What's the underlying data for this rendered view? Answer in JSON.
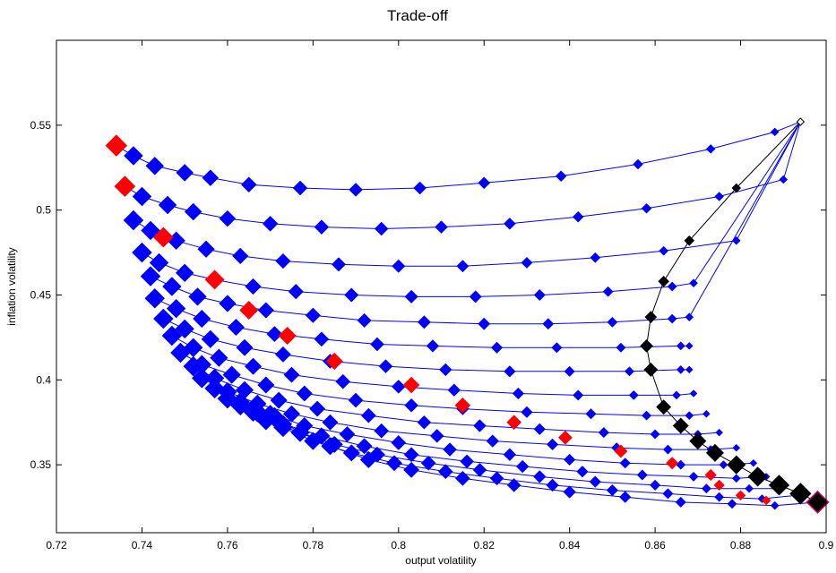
{
  "chart_data": {
    "type": "scatter",
    "title": "Trade-off",
    "xlabel": "output volatility",
    "ylabel": "inflation volatility",
    "xlim": [
      0.72,
      0.9
    ],
    "ylim": [
      0.31,
      0.6
    ],
    "xticks": [
      "0.72",
      "0.74",
      "0.76",
      "0.78",
      "0.8",
      "0.82",
      "0.84",
      "0.86",
      "0.88",
      "0.9"
    ],
    "yticks": [
      "0.35",
      "0.4",
      "0.45",
      "0.5",
      "0.55"
    ],
    "grid": false,
    "colors": {
      "line": "#0000ff",
      "marker": "#0000ff",
      "highlight": "#ff0000",
      "frontier": "#000000",
      "endpoint_edge": "#cc0066"
    },
    "series": [
      {
        "points": [
          [
            0.734,
            0.538
          ],
          [
            0.738,
            0.532
          ],
          [
            0.743,
            0.526
          ],
          [
            0.75,
            0.522
          ],
          [
            0.756,
            0.519
          ],
          [
            0.765,
            0.515
          ],
          [
            0.777,
            0.513
          ],
          [
            0.79,
            0.512
          ],
          [
            0.805,
            0.513
          ],
          [
            0.82,
            0.516
          ],
          [
            0.838,
            0.52
          ],
          [
            0.856,
            0.527
          ],
          [
            0.873,
            0.536
          ],
          [
            0.888,
            0.546
          ],
          [
            0.894,
            0.552
          ]
        ]
      },
      {
        "points": [
          [
            0.736,
            0.514
          ],
          [
            0.74,
            0.508
          ],
          [
            0.746,
            0.503
          ],
          [
            0.752,
            0.499
          ],
          [
            0.76,
            0.495
          ],
          [
            0.77,
            0.492
          ],
          [
            0.782,
            0.49
          ],
          [
            0.796,
            0.489
          ],
          [
            0.81,
            0.49
          ],
          [
            0.826,
            0.492
          ],
          [
            0.842,
            0.496
          ],
          [
            0.858,
            0.501
          ],
          [
            0.875,
            0.508
          ],
          [
            0.89,
            0.518
          ],
          [
            0.894,
            0.552
          ]
        ]
      },
      {
        "points": [
          [
            0.738,
            0.494
          ],
          [
            0.742,
            0.488
          ],
          [
            0.748,
            0.482
          ],
          [
            0.755,
            0.477
          ],
          [
            0.763,
            0.473
          ],
          [
            0.773,
            0.47
          ],
          [
            0.786,
            0.468
          ],
          [
            0.8,
            0.467
          ],
          [
            0.815,
            0.467
          ],
          [
            0.83,
            0.469
          ],
          [
            0.846,
            0.472
          ],
          [
            0.862,
            0.476
          ],
          [
            0.879,
            0.482
          ],
          [
            0.894,
            0.552
          ]
        ]
      },
      {
        "points": [
          [
            0.74,
            0.475
          ],
          [
            0.744,
            0.469
          ],
          [
            0.75,
            0.463
          ],
          [
            0.757,
            0.459
          ],
          [
            0.766,
            0.455
          ],
          [
            0.776,
            0.452
          ],
          [
            0.789,
            0.45
          ],
          [
            0.803,
            0.449
          ],
          [
            0.818,
            0.449
          ],
          [
            0.833,
            0.45
          ],
          [
            0.849,
            0.452
          ],
          [
            0.864,
            0.455
          ],
          [
            0.869,
            0.457
          ],
          [
            0.894,
            0.552
          ]
        ]
      },
      {
        "points": [
          [
            0.742,
            0.461
          ],
          [
            0.747,
            0.455
          ],
          [
            0.753,
            0.449
          ],
          [
            0.76,
            0.445
          ],
          [
            0.769,
            0.441
          ],
          [
            0.78,
            0.438
          ],
          [
            0.792,
            0.435
          ],
          [
            0.806,
            0.434
          ],
          [
            0.82,
            0.433
          ],
          [
            0.835,
            0.433
          ],
          [
            0.85,
            0.434
          ],
          [
            0.864,
            0.436
          ],
          [
            0.868,
            0.437
          ],
          [
            0.894,
            0.552
          ]
        ]
      },
      {
        "points": [
          [
            0.743,
            0.448
          ],
          [
            0.748,
            0.442
          ],
          [
            0.754,
            0.436
          ],
          [
            0.762,
            0.431
          ],
          [
            0.771,
            0.427
          ],
          [
            0.782,
            0.424
          ],
          [
            0.795,
            0.421
          ],
          [
            0.808,
            0.42
          ],
          [
            0.823,
            0.419
          ],
          [
            0.837,
            0.419
          ],
          [
            0.852,
            0.419
          ],
          [
            0.866,
            0.42
          ],
          [
            0.868,
            0.42
          ]
        ]
      },
      {
        "points": [
          [
            0.745,
            0.436
          ],
          [
            0.75,
            0.43
          ],
          [
            0.756,
            0.424
          ],
          [
            0.764,
            0.419
          ],
          [
            0.773,
            0.415
          ],
          [
            0.784,
            0.411
          ],
          [
            0.797,
            0.408
          ],
          [
            0.811,
            0.406
          ],
          [
            0.826,
            0.405
          ],
          [
            0.84,
            0.405
          ],
          [
            0.854,
            0.405
          ],
          [
            0.866,
            0.406
          ],
          [
            0.868,
            0.406
          ]
        ]
      },
      {
        "points": [
          [
            0.747,
            0.426
          ],
          [
            0.752,
            0.419
          ],
          [
            0.758,
            0.413
          ],
          [
            0.766,
            0.408
          ],
          [
            0.775,
            0.403
          ],
          [
            0.787,
            0.399
          ],
          [
            0.8,
            0.396
          ],
          [
            0.813,
            0.394
          ],
          [
            0.828,
            0.392
          ],
          [
            0.842,
            0.391
          ],
          [
            0.855,
            0.391
          ],
          [
            0.865,
            0.391
          ],
          [
            0.869,
            0.392
          ]
        ]
      },
      {
        "points": [
          [
            0.749,
            0.416
          ],
          [
            0.754,
            0.409
          ],
          [
            0.761,
            0.403
          ],
          [
            0.769,
            0.397
          ],
          [
            0.778,
            0.392
          ],
          [
            0.79,
            0.388
          ],
          [
            0.803,
            0.385
          ],
          [
            0.815,
            0.383
          ],
          [
            0.83,
            0.381
          ],
          [
            0.845,
            0.38
          ],
          [
            0.858,
            0.379
          ],
          [
            0.868,
            0.379
          ],
          [
            0.872,
            0.38
          ]
        ]
      },
      {
        "points": [
          [
            0.752,
            0.408
          ],
          [
            0.757,
            0.401
          ],
          [
            0.764,
            0.394
          ],
          [
            0.772,
            0.388
          ],
          [
            0.781,
            0.383
          ],
          [
            0.793,
            0.379
          ],
          [
            0.806,
            0.375
          ],
          [
            0.819,
            0.373
          ],
          [
            0.833,
            0.371
          ],
          [
            0.848,
            0.369
          ],
          [
            0.86,
            0.368
          ],
          [
            0.87,
            0.368
          ],
          [
            0.875,
            0.369
          ]
        ]
      },
      {
        "points": [
          [
            0.754,
            0.401
          ],
          [
            0.76,
            0.393
          ],
          [
            0.767,
            0.386
          ],
          [
            0.775,
            0.38
          ],
          [
            0.784,
            0.375
          ],
          [
            0.796,
            0.37
          ],
          [
            0.809,
            0.367
          ],
          [
            0.822,
            0.364
          ],
          [
            0.836,
            0.362
          ],
          [
            0.851,
            0.36
          ],
          [
            0.863,
            0.359
          ],
          [
            0.873,
            0.359
          ],
          [
            0.879,
            0.36
          ]
        ]
      },
      {
        "points": [
          [
            0.757,
            0.395
          ],
          [
            0.763,
            0.387
          ],
          [
            0.77,
            0.38
          ],
          [
            0.778,
            0.373
          ],
          [
            0.788,
            0.368
          ],
          [
            0.8,
            0.363
          ],
          [
            0.812,
            0.359
          ],
          [
            0.826,
            0.356
          ],
          [
            0.84,
            0.353
          ],
          [
            0.853,
            0.351
          ],
          [
            0.866,
            0.35
          ],
          [
            0.876,
            0.35
          ],
          [
            0.883,
            0.351
          ]
        ]
      },
      {
        "points": [
          [
            0.76,
            0.389
          ],
          [
            0.766,
            0.381
          ],
          [
            0.773,
            0.374
          ],
          [
            0.782,
            0.367
          ],
          [
            0.792,
            0.361
          ],
          [
            0.803,
            0.356
          ],
          [
            0.816,
            0.352
          ],
          [
            0.829,
            0.349
          ],
          [
            0.843,
            0.346
          ],
          [
            0.857,
            0.344
          ],
          [
            0.869,
            0.343
          ],
          [
            0.879,
            0.342
          ],
          [
            0.886,
            0.343
          ]
        ]
      },
      {
        "points": [
          [
            0.763,
            0.385
          ],
          [
            0.769,
            0.376
          ],
          [
            0.777,
            0.369
          ],
          [
            0.785,
            0.362
          ],
          [
            0.795,
            0.356
          ],
          [
            0.807,
            0.351
          ],
          [
            0.819,
            0.347
          ],
          [
            0.833,
            0.343
          ],
          [
            0.846,
            0.34
          ],
          [
            0.86,
            0.338
          ],
          [
            0.872,
            0.336
          ],
          [
            0.882,
            0.336
          ],
          [
            0.889,
            0.336
          ]
        ]
      },
      {
        "points": [
          [
            0.767,
            0.381
          ],
          [
            0.773,
            0.372
          ],
          [
            0.78,
            0.364
          ],
          [
            0.789,
            0.357
          ],
          [
            0.799,
            0.351
          ],
          [
            0.811,
            0.346
          ],
          [
            0.823,
            0.342
          ],
          [
            0.836,
            0.338
          ],
          [
            0.85,
            0.335
          ],
          [
            0.863,
            0.333
          ],
          [
            0.875,
            0.331
          ],
          [
            0.885,
            0.33
          ],
          [
            0.893,
            0.332
          ]
        ]
      },
      {
        "points": [
          [
            0.771,
            0.378
          ],
          [
            0.777,
            0.369
          ],
          [
            0.784,
            0.361
          ],
          [
            0.793,
            0.353
          ],
          [
            0.803,
            0.347
          ],
          [
            0.815,
            0.342
          ],
          [
            0.827,
            0.338
          ],
          [
            0.84,
            0.334
          ],
          [
            0.853,
            0.331
          ],
          [
            0.866,
            0.328
          ],
          [
            0.878,
            0.327
          ],
          [
            0.888,
            0.326
          ],
          [
            0.898,
            0.328
          ]
        ]
      }
    ],
    "highlight_points": [
      [
        0.734,
        0.538
      ],
      [
        0.736,
        0.514
      ],
      [
        0.745,
        0.484
      ],
      [
        0.757,
        0.459
      ],
      [
        0.765,
        0.441
      ],
      [
        0.774,
        0.426
      ],
      [
        0.785,
        0.411
      ],
      [
        0.803,
        0.397
      ],
      [
        0.815,
        0.385
      ],
      [
        0.827,
        0.375
      ],
      [
        0.839,
        0.366
      ],
      [
        0.852,
        0.358
      ],
      [
        0.864,
        0.351
      ],
      [
        0.873,
        0.344
      ],
      [
        0.875,
        0.338
      ],
      [
        0.88,
        0.332
      ],
      [
        0.886,
        0.329
      ]
    ],
    "frontier_points": [
      [
        0.894,
        0.552
      ],
      [
        0.879,
        0.513
      ],
      [
        0.868,
        0.482
      ],
      [
        0.862,
        0.458
      ],
      [
        0.859,
        0.437
      ],
      [
        0.858,
        0.42
      ],
      [
        0.859,
        0.406
      ],
      [
        0.862,
        0.384
      ],
      [
        0.866,
        0.373
      ],
      [
        0.87,
        0.364
      ],
      [
        0.874,
        0.357
      ],
      [
        0.879,
        0.35
      ],
      [
        0.884,
        0.343
      ],
      [
        0.889,
        0.338
      ],
      [
        0.894,
        0.333
      ],
      [
        0.898,
        0.328
      ]
    ]
  }
}
